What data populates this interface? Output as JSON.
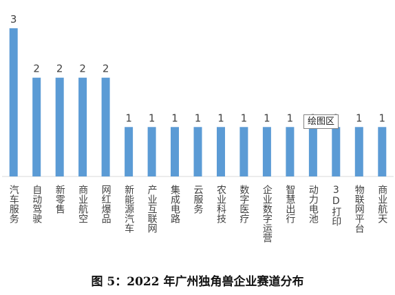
{
  "chart_data": {
    "type": "bar",
    "categories": [
      "汽车服务",
      "自动驾驶",
      "新零售",
      "商业航空",
      "网红爆品",
      "新能源汽车",
      "产业互联网",
      "集成电路",
      "云服务",
      "农业科技",
      "数字医疗",
      "企业数字运营",
      "智慧出行",
      "动力电池",
      "3D打印",
      "物联网平台",
      "商业航天"
    ],
    "values": [
      3,
      2,
      2,
      2,
      2,
      1,
      1,
      1,
      1,
      1,
      1,
      1,
      1,
      1,
      1,
      1,
      1
    ],
    "title": "",
    "xlabel": "",
    "ylabel": "",
    "ylim": [
      0,
      3
    ],
    "grid": false,
    "legend": "none",
    "bar_color": "#5b9bd5",
    "data_labels": true
  },
  "caption": "图 5：2022 年广州独角兽企业赛道分布",
  "tooltip": "绘图区"
}
